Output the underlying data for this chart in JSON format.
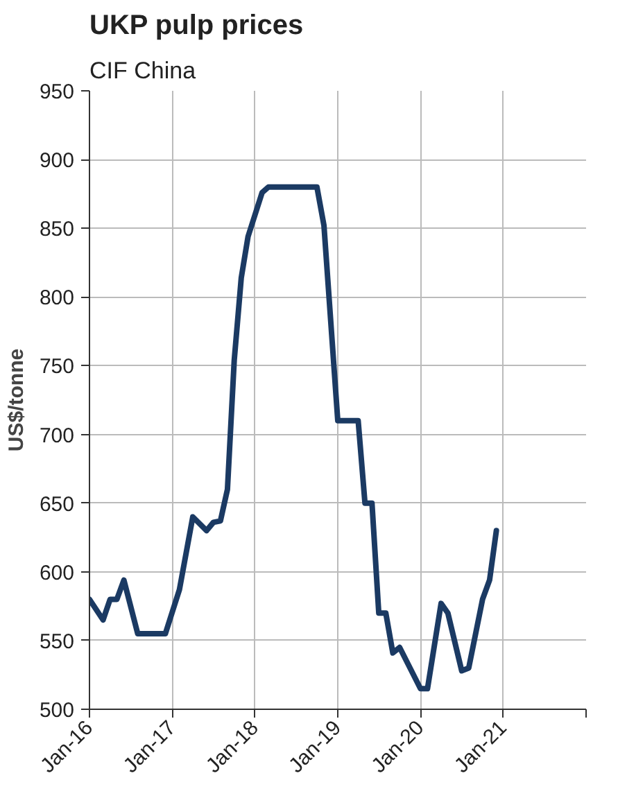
{
  "chart_data": {
    "type": "line",
    "title": "UKP pulp prices",
    "subtitle": "CIF China",
    "ylabel": "US$/tonne",
    "series": [
      {
        "color": "#1b3a63",
        "x": [
          "2016-01",
          "2016-03",
          "2016-04",
          "2016-05",
          "2016-06",
          "2016-08",
          "2016-12",
          "2017-02",
          "2017-04",
          "2017-06",
          "2017-07",
          "2017-08",
          "2017-09",
          "2017-10",
          "2017-11",
          "2017-12",
          "2018-02",
          "2018-03",
          "2018-10",
          "2018-11",
          "2019-01",
          "2019-04",
          "2019-05",
          "2019-06",
          "2019-07",
          "2019-08",
          "2019-09",
          "2019-10",
          "2020-01",
          "2020-02",
          "2020-04",
          "2020-05",
          "2020-07",
          "2020-08",
          "2020-10",
          "2020-11",
          "2020-12"
        ],
        "values": [
          580,
          565,
          580,
          580,
          594,
          555,
          555,
          587,
          640,
          630,
          636,
          637,
          660,
          754,
          814,
          844,
          876,
          880,
          880,
          852,
          710,
          710,
          650,
          650,
          570,
          570,
          541,
          545,
          515,
          515,
          577,
          570,
          528,
          530,
          580,
          594,
          630
        ]
      }
    ],
    "xlim": [
      "2016-01",
      "2022-01"
    ],
    "xticks": [
      {
        "value": "2016-01",
        "label": "Jan-16"
      },
      {
        "value": "2017-01",
        "label": "Jan-17"
      },
      {
        "value": "2018-01",
        "label": "Jan-18"
      },
      {
        "value": "2019-01",
        "label": "Jan-19"
      },
      {
        "value": "2020-01",
        "label": "Jan-20"
      },
      {
        "value": "2021-01",
        "label": "Jan-21"
      },
      {
        "value": "2022-01",
        "label": null
      }
    ],
    "ylim": [
      500,
      950
    ],
    "yticks": [
      500,
      550,
      600,
      650,
      700,
      750,
      800,
      850,
      900,
      950
    ],
    "grid": true,
    "marker": "none",
    "line_style": "solid"
  }
}
